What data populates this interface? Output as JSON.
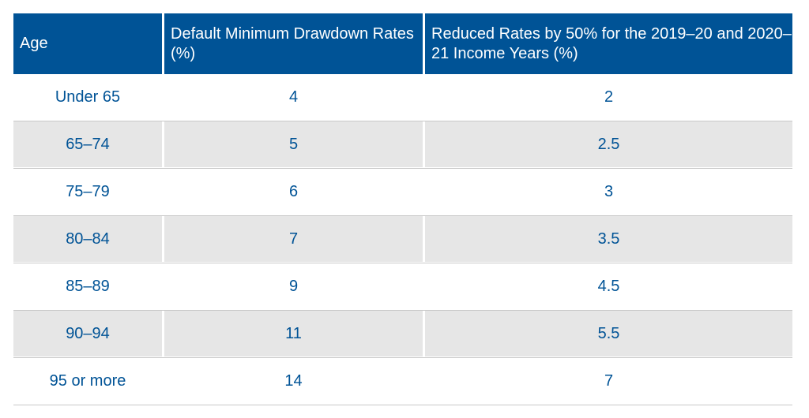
{
  "colors": {
    "header_bg": "#005396",
    "text": "#005396",
    "alt_row": "#e6e6e6"
  },
  "table": {
    "headers": [
      "Age",
      "Default Minimum Drawdown Rates (%)",
      "Reduced Rates by 50% for the 2019–20 and 2020–21 Income Years (%)"
    ],
    "rows": [
      [
        "Under 65",
        "4",
        "2"
      ],
      [
        "65–74",
        "5",
        "2.5"
      ],
      [
        "75–79",
        "6",
        "3"
      ],
      [
        "80–84",
        "7",
        "3.5"
      ],
      [
        "85–89",
        "9",
        "4.5"
      ],
      [
        "90–94",
        "11",
        "5.5"
      ],
      [
        "95 or more",
        "14",
        "7"
      ]
    ]
  }
}
